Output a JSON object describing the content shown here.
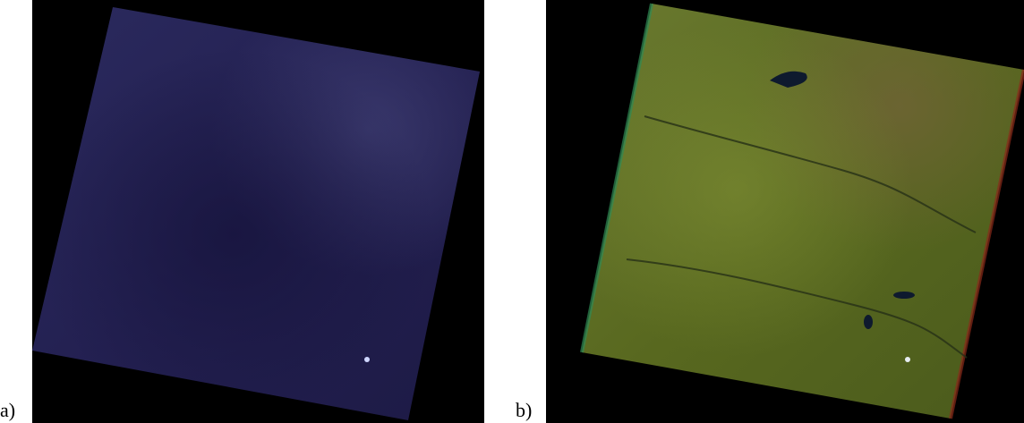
{
  "panels": [
    {
      "label": "a)",
      "content": "satellite-scene",
      "colors": {
        "background": "#000000",
        "scene": "#221f4a"
      }
    },
    {
      "label": "b)",
      "content": "satellite-scene",
      "colors": {
        "background": "#000000",
        "scene": "#5a6a24"
      }
    }
  ]
}
